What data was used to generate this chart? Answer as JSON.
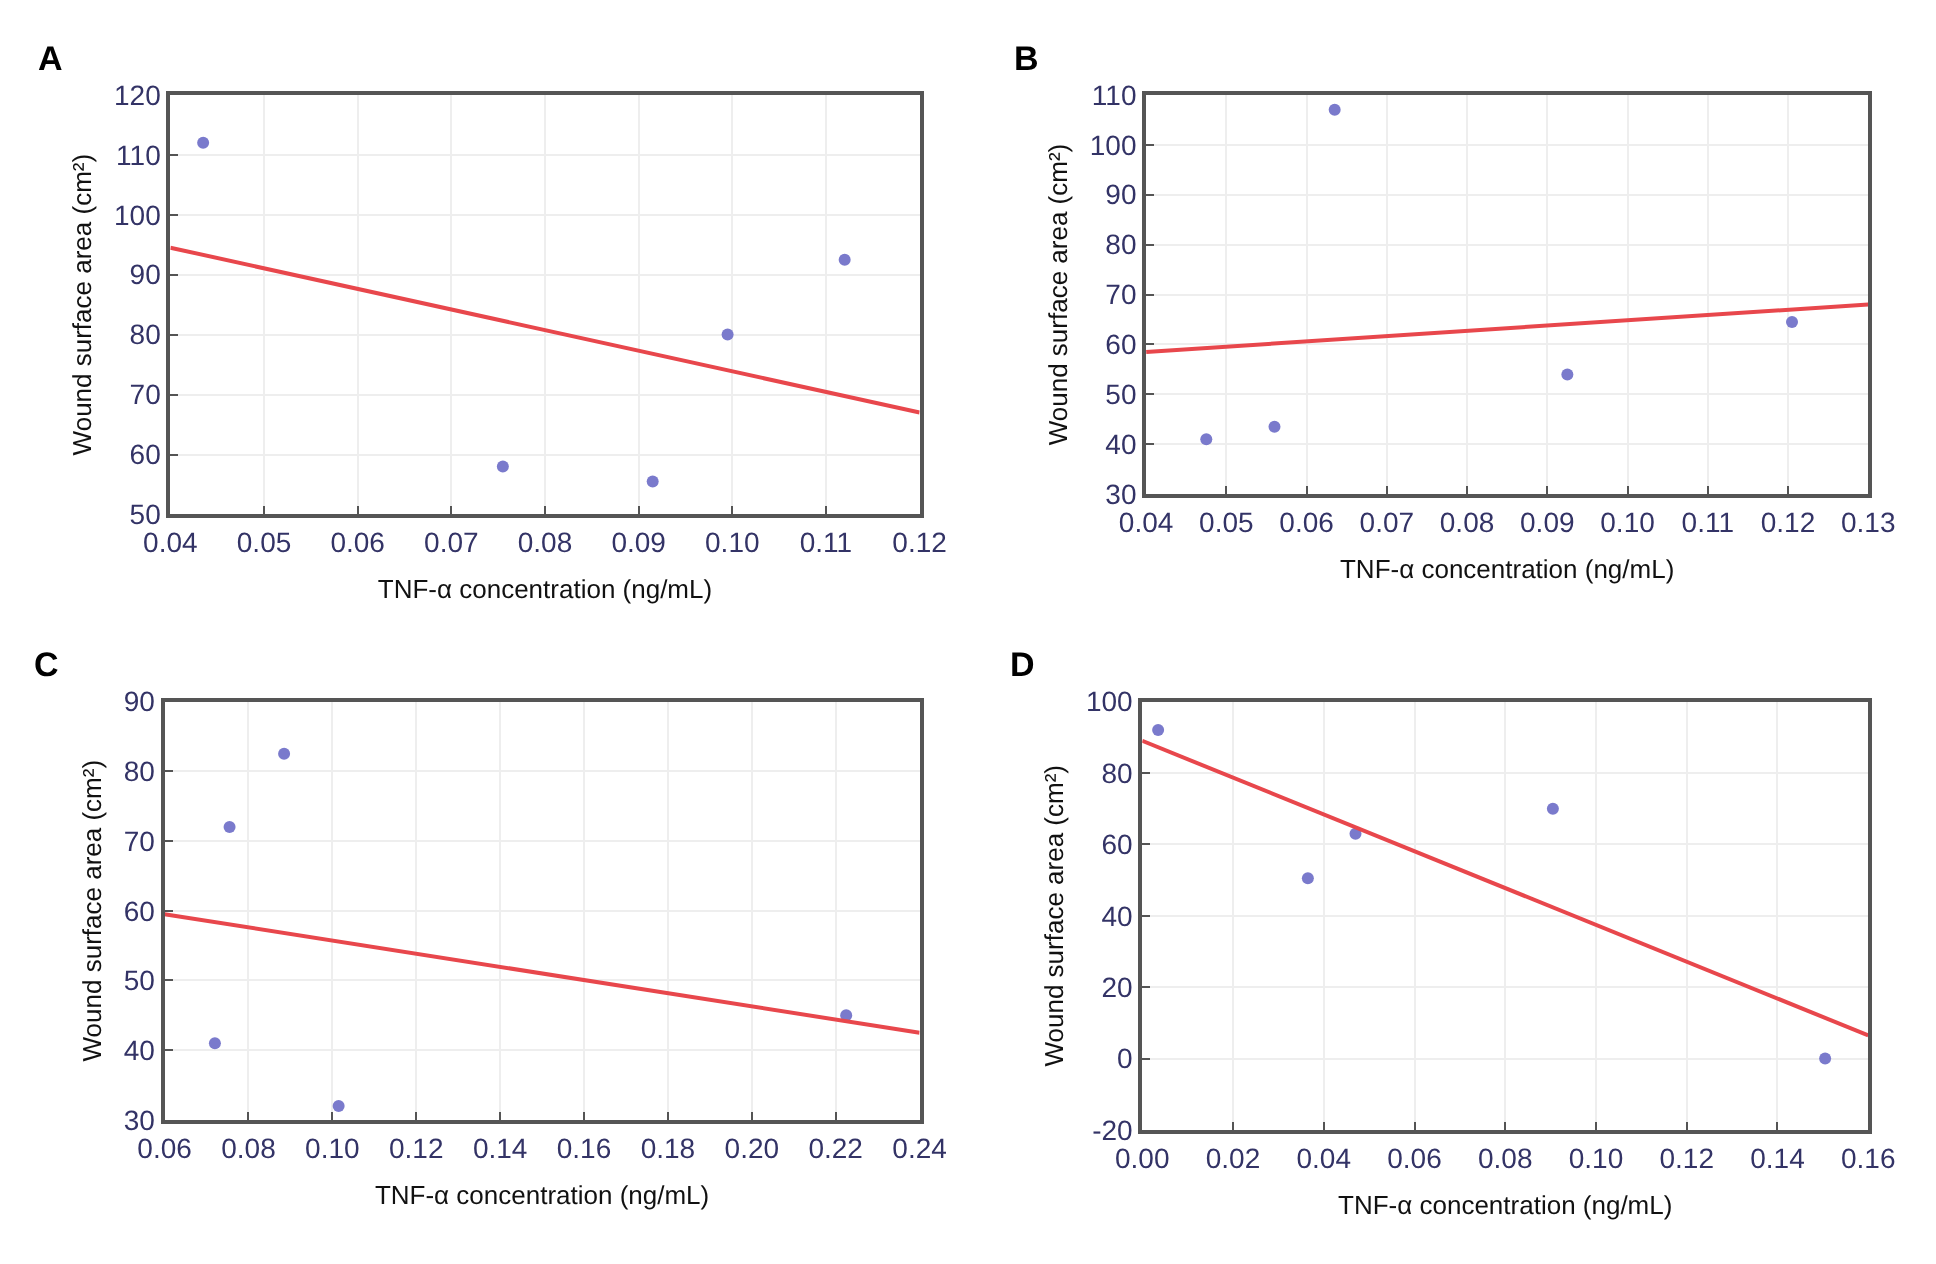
{
  "chart_data": [
    {
      "type": "scatter",
      "title": "A",
      "xlabel": "TNF-α concentration (ng/mL)",
      "ylabel": "Wound surface area (cm²)",
      "grid": true,
      "xlim": [
        0.04,
        0.12
      ],
      "xticks": [
        {
          "value": 0.04,
          "label": "0.04"
        },
        {
          "value": 0.05,
          "label": "0.05"
        },
        {
          "value": 0.06,
          "label": "0.06"
        },
        {
          "value": 0.07,
          "label": "0.07"
        },
        {
          "value": 0.08,
          "label": "0.08"
        },
        {
          "value": 0.09,
          "label": "0.09"
        },
        {
          "value": 0.1,
          "label": "0.10"
        },
        {
          "value": 0.11,
          "label": "0.11"
        },
        {
          "value": 0.12,
          "label": "0.12"
        }
      ],
      "ylim": [
        50,
        120
      ],
      "yticks": [
        50,
        60,
        70,
        80,
        90,
        100,
        110,
        120
      ],
      "series": [
        {
          "type": "scatter",
          "marker": "circle",
          "color": "#7a7acc",
          "x": [
            0.0435,
            0.0755,
            0.0915,
            0.0995,
            0.112
          ],
          "values": [
            112,
            58,
            55.5,
            80,
            92.5
          ]
        },
        {
          "type": "line",
          "color": "#e8474c",
          "x": [
            0.04,
            0.12
          ],
          "values": [
            94.5,
            67
          ]
        }
      ]
    },
    {
      "type": "scatter",
      "title": "B",
      "xlabel": "TNF-α concentration (ng/mL)",
      "ylabel": "Wound surface area (cm²)",
      "grid": true,
      "xlim": [
        0.04,
        0.13
      ],
      "xticks": [
        {
          "value": 0.04,
          "label": "0.04"
        },
        {
          "value": 0.05,
          "label": "0.05"
        },
        {
          "value": 0.06,
          "label": "0.06"
        },
        {
          "value": 0.07,
          "label": "0.07"
        },
        {
          "value": 0.08,
          "label": "0.08"
        },
        {
          "value": 0.09,
          "label": "0.09"
        },
        {
          "value": 0.1,
          "label": "0.10"
        },
        {
          "value": 0.11,
          "label": "0.11"
        },
        {
          "value": 0.12,
          "label": "0.12"
        },
        {
          "value": 0.13,
          "label": "0.13"
        }
      ],
      "ylim": [
        30,
        110
      ],
      "yticks": [
        30,
        40,
        50,
        60,
        70,
        80,
        90,
        100,
        110
      ],
      "series": [
        {
          "type": "scatter",
          "marker": "circle",
          "color": "#7a7acc",
          "x": [
            0.0475,
            0.056,
            0.0635,
            0.0925,
            0.1205
          ],
          "values": [
            41,
            43.5,
            107,
            54,
            64.5
          ]
        },
        {
          "type": "line",
          "color": "#e8474c",
          "x": [
            0.04,
            0.13
          ],
          "values": [
            58.5,
            68
          ]
        }
      ]
    },
    {
      "type": "scatter",
      "title": "C",
      "xlabel": "TNF-α concentration (ng/mL)",
      "ylabel": "Wound surface area (cm²)",
      "grid": true,
      "xlim": [
        0.06,
        0.24
      ],
      "xticks": [
        {
          "value": 0.06,
          "label": "0.06"
        },
        {
          "value": 0.08,
          "label": "0.08"
        },
        {
          "value": 0.1,
          "label": "0.10"
        },
        {
          "value": 0.12,
          "label": "0.12"
        },
        {
          "value": 0.14,
          "label": "0.14"
        },
        {
          "value": 0.16,
          "label": "0.16"
        },
        {
          "value": 0.18,
          "label": "0.18"
        },
        {
          "value": 0.2,
          "label": "0.20"
        },
        {
          "value": 0.22,
          "label": "0.22"
        },
        {
          "value": 0.24,
          "label": "0.24"
        }
      ],
      "ylim": [
        30,
        90
      ],
      "yticks": [
        30,
        40,
        50,
        60,
        70,
        80,
        90
      ],
      "series": [
        {
          "type": "scatter",
          "marker": "circle",
          "color": "#7a7acc",
          "x": [
            0.072,
            0.0755,
            0.0885,
            0.1015,
            0.2225
          ],
          "values": [
            41,
            72,
            82.5,
            32,
            45
          ]
        },
        {
          "type": "line",
          "color": "#e8474c",
          "x": [
            0.06,
            0.24
          ],
          "values": [
            59.5,
            42.5
          ]
        }
      ]
    },
    {
      "type": "scatter",
      "title": "D",
      "xlabel": "TNF-α concentration (ng/mL)",
      "ylabel": "Wound surface area (cm²)",
      "grid": true,
      "xlim": [
        0.0,
        0.16
      ],
      "xticks": [
        {
          "value": 0.0,
          "label": "0.00"
        },
        {
          "value": 0.02,
          "label": "0.02"
        },
        {
          "value": 0.04,
          "label": "0.04"
        },
        {
          "value": 0.06,
          "label": "0.06"
        },
        {
          "value": 0.08,
          "label": "0.08"
        },
        {
          "value": 0.1,
          "label": "0.10"
        },
        {
          "value": 0.12,
          "label": "0.12"
        },
        {
          "value": 0.14,
          "label": "0.14"
        },
        {
          "value": 0.16,
          "label": "0.16"
        }
      ],
      "ylim": [
        -20,
        100
      ],
      "yticks": [
        -20,
        0,
        20,
        40,
        60,
        80,
        100
      ],
      "series": [
        {
          "type": "scatter",
          "marker": "circle",
          "color": "#7a7acc",
          "x": [
            0.0035,
            0.0365,
            0.047,
            0.0905,
            0.1505
          ],
          "values": [
            92,
            50.5,
            63,
            70,
            0
          ]
        },
        {
          "type": "line",
          "color": "#e8474c",
          "x": [
            0.0,
            0.16
          ],
          "values": [
            89,
            6.5
          ]
        }
      ]
    }
  ]
}
